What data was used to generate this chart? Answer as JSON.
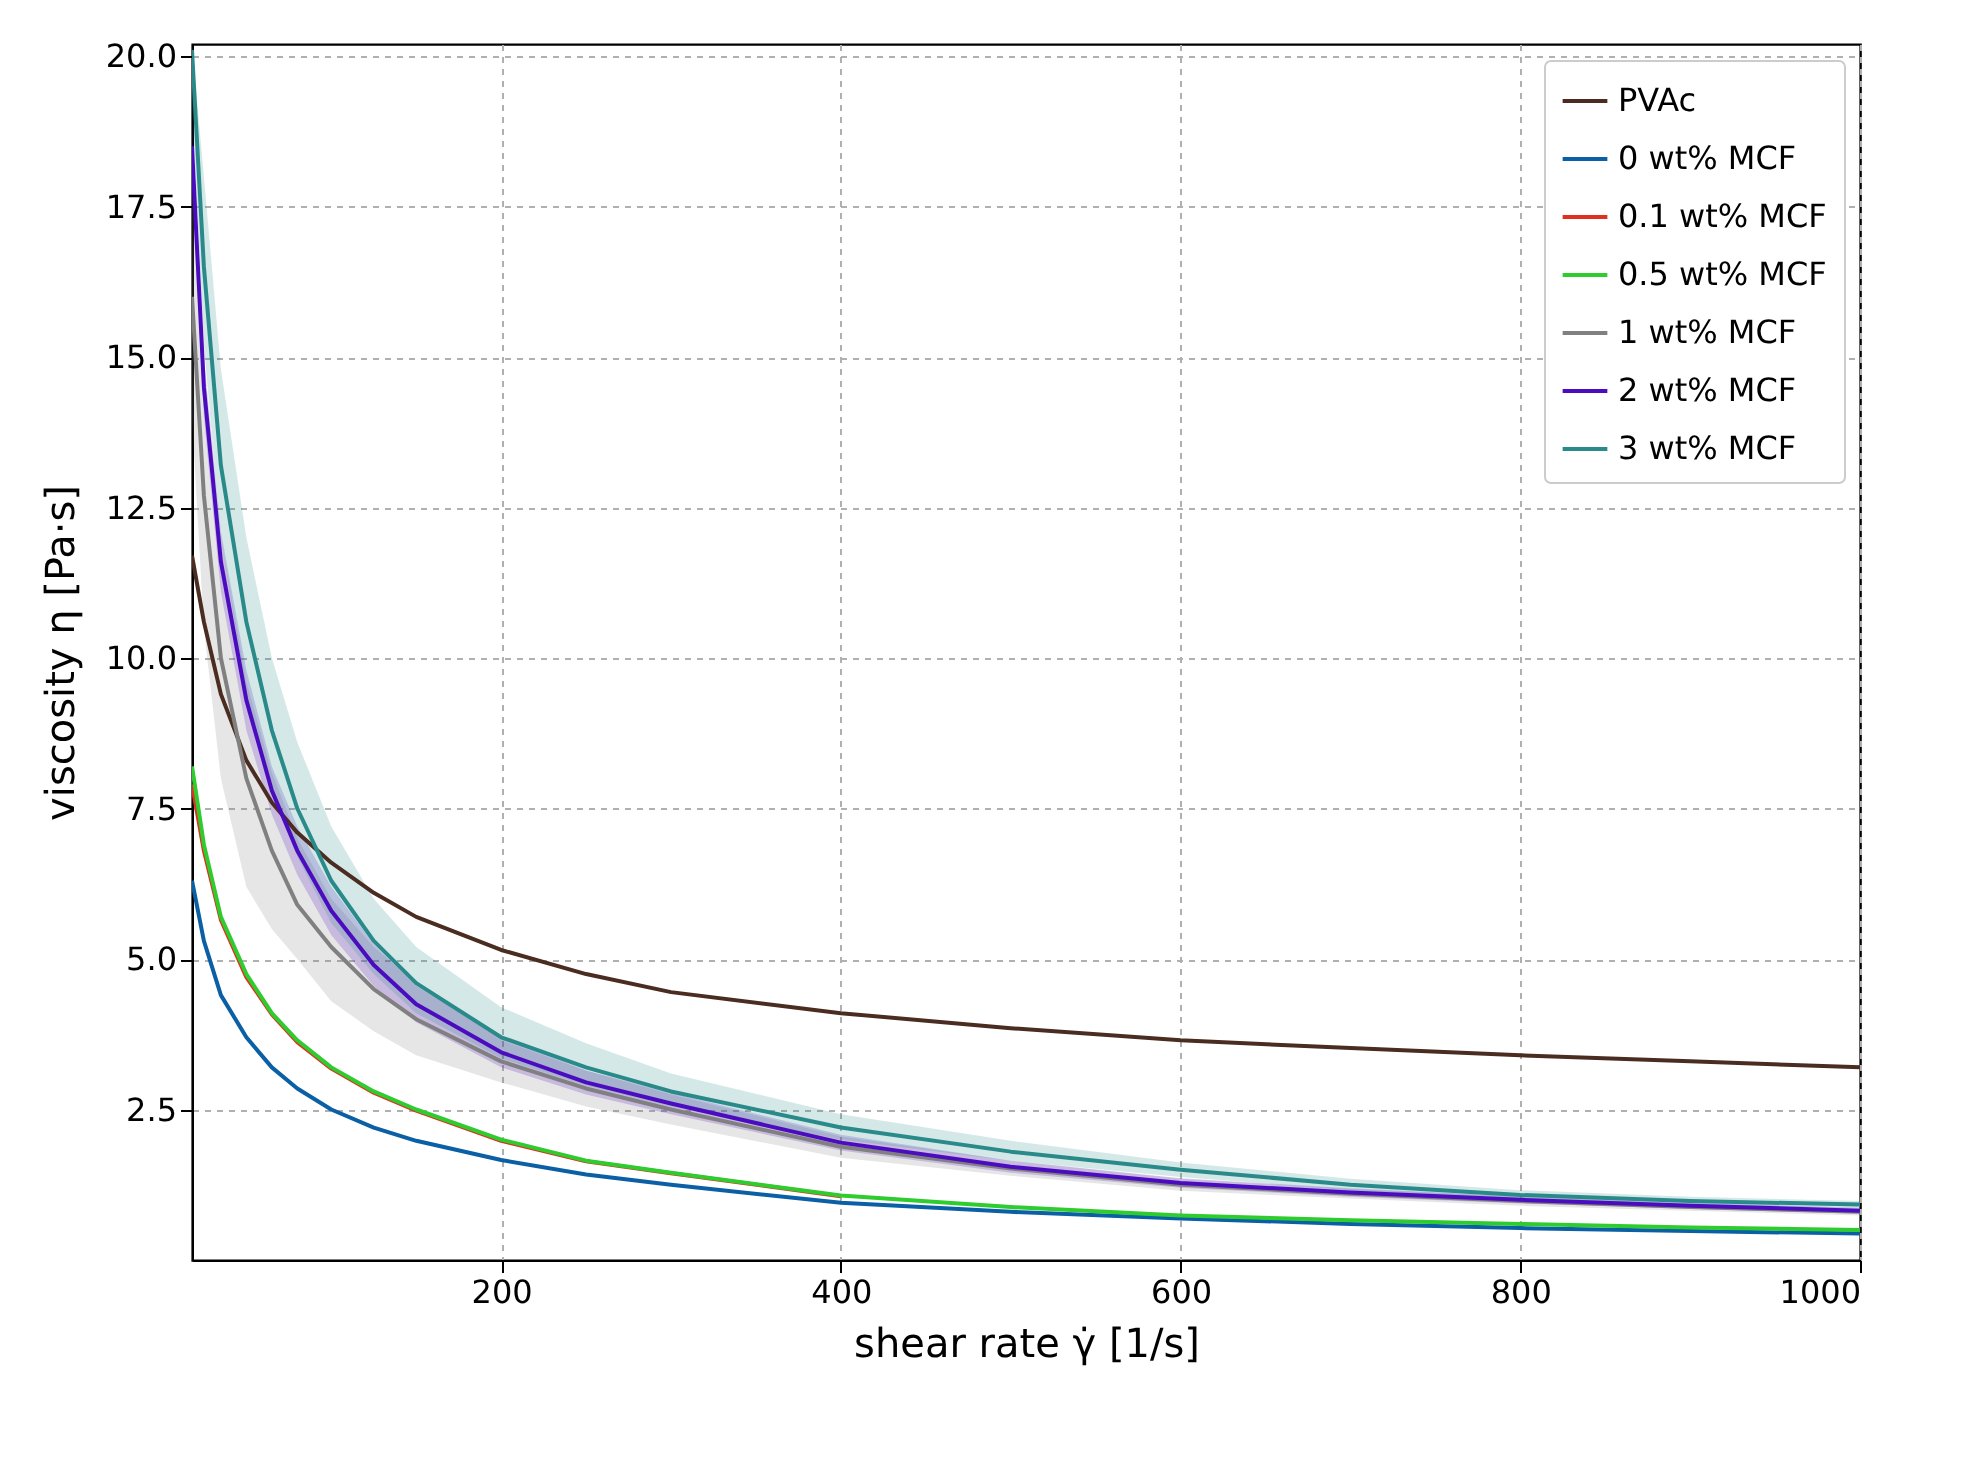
{
  "chart_data": {
    "type": "line",
    "xlabel": "shear rate γ̇ [1/s]",
    "ylabel": "viscosity η [Pa·s]",
    "x": [
      18,
      25,
      35,
      50,
      65,
      80,
      100,
      125,
      150,
      200,
      250,
      300,
      400,
      500,
      600,
      700,
      800,
      900,
      1000
    ],
    "xlim": [
      18,
      1000
    ],
    "ylim": [
      0,
      20.2
    ],
    "xticks": [
      200,
      400,
      600,
      800,
      1000
    ],
    "yticks": [
      2.5,
      {
        "value": 5,
        "label": "5.0"
      },
      7.5,
      {
        "value": 10,
        "label": "10.0"
      },
      12.5,
      {
        "value": 15,
        "label": "15.0"
      },
      17.5,
      {
        "value": 20,
        "label": "20.0"
      }
    ],
    "grid": true,
    "legend": "top right",
    "line_style": "solid",
    "series": [
      {
        "name": "PVAc",
        "color": "#4a2c20",
        "values": [
          11.7,
          10.6,
          9.4,
          8.3,
          7.6,
          7.1,
          6.6,
          6.1,
          5.7,
          5.15,
          4.75,
          4.45,
          4.1,
          3.85,
          3.65,
          3.52,
          3.4,
          3.3,
          3.2
        ]
      },
      {
        "name": "0 wt% MCF",
        "color": "#0b5fa5",
        "values": [
          6.3,
          5.3,
          4.4,
          3.7,
          3.2,
          2.85,
          2.5,
          2.2,
          1.98,
          1.66,
          1.42,
          1.25,
          0.95,
          0.8,
          0.69,
          0.6,
          0.53,
          0.48,
          0.44
        ]
      },
      {
        "name": "0.1 wt% MCF",
        "color": "#e03020",
        "values": [
          7.9,
          6.8,
          5.65,
          4.7,
          4.08,
          3.62,
          3.18,
          2.78,
          2.48,
          1.98,
          1.64,
          1.44,
          1.06,
          null,
          null,
          null,
          null,
          null,
          null
        ]
      },
      {
        "name": "0.5 wt% MCF",
        "color": "#2ecc2e",
        "values": [
          8.2,
          6.9,
          5.7,
          4.75,
          4.1,
          3.65,
          3.2,
          2.8,
          2.5,
          2.0,
          1.65,
          1.45,
          1.07,
          0.88,
          0.74,
          0.66,
          0.6,
          0.54,
          0.5
        ]
      },
      {
        "name": "1 wt% MCF",
        "color": "#808080",
        "values": [
          16,
          12.7,
          10,
          8.0,
          6.8,
          5.9,
          5.2,
          4.5,
          4.0,
          3.3,
          2.85,
          2.5,
          1.88,
          1.52,
          1.25,
          1.1,
          0.98,
          0.88,
          0.8
        ],
        "lower": [
          14,
          10.5,
          8,
          6.2,
          5.5,
          5.0,
          4.3,
          3.8,
          3.4,
          2.95,
          2.55,
          2.25,
          1.7,
          1.4,
          1.15,
          1.02,
          0.9,
          0.82,
          0.74
        ],
        "upper": [
          18,
          14.8,
          12,
          9.6,
          8.1,
          7.0,
          6.0,
          5.2,
          4.6,
          3.65,
          3.15,
          2.75,
          2.05,
          1.65,
          1.35,
          1.18,
          1.05,
          0.94,
          0.86
        ]
      },
      {
        "name": "2 wt% MCF",
        "color": "#4b0bbf",
        "values": [
          18.5,
          14.5,
          11.6,
          9.3,
          7.8,
          6.8,
          5.8,
          4.9,
          4.25,
          3.45,
          2.95,
          2.6,
          1.95,
          1.55,
          1.28,
          1.12,
          1.0,
          0.9,
          0.82
        ],
        "lower": [
          18.0,
          14.0,
          11.1,
          8.8,
          7.4,
          6.4,
          5.4,
          4.55,
          3.95,
          3.2,
          2.75,
          2.42,
          1.82,
          1.45,
          1.2,
          1.05,
          0.94,
          0.85,
          0.77
        ],
        "upper": [
          19.0,
          15.0,
          12.1,
          9.8,
          8.2,
          7.2,
          6.2,
          5.25,
          4.55,
          3.7,
          3.15,
          2.78,
          2.08,
          1.65,
          1.36,
          1.19,
          1.06,
          0.95,
          0.87
        ]
      },
      {
        "name": "3 wt% MCF",
        "color": "#2a8a8a",
        "values": [
          20.1,
          16.5,
          13.2,
          10.6,
          8.8,
          7.5,
          6.3,
          5.3,
          4.6,
          3.7,
          3.2,
          2.8,
          2.2,
          1.8,
          1.5,
          1.25,
          1.08,
          0.98,
          0.92
        ],
        "lower": [
          19.2,
          15.2,
          12.0,
          9.4,
          7.8,
          6.7,
          5.6,
          4.75,
          4.1,
          3.35,
          2.9,
          2.55,
          2.0,
          1.65,
          1.38,
          1.16,
          1.0,
          0.92,
          0.86
        ],
        "upper": [
          20.2,
          18.0,
          14.8,
          12.0,
          10.0,
          8.6,
          7.2,
          6.0,
          5.2,
          4.2,
          3.6,
          3.1,
          2.42,
          1.98,
          1.62,
          1.35,
          1.16,
          1.05,
          0.98
        ]
      }
    ]
  }
}
